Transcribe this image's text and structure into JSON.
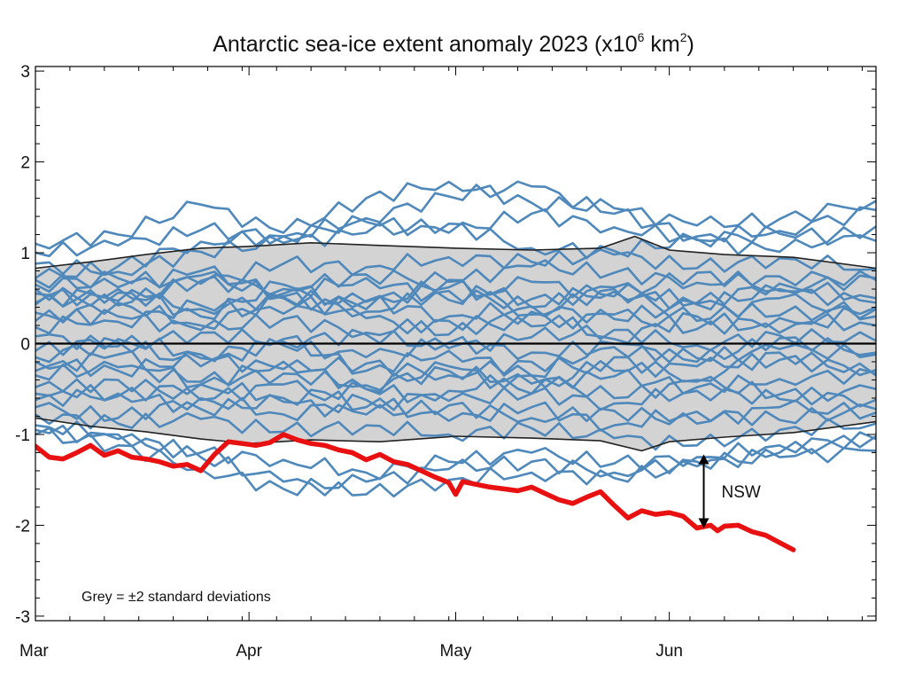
{
  "chart_data": {
    "type": "line",
    "title": {
      "main": "Antarctic sea-ice extent anomaly 2023 (x10",
      "exp1": "6",
      "mid": " km",
      "exp2": "2",
      "end": ")"
    },
    "xlabel": "",
    "ylabel": "",
    "x_ticks": [
      "Mar",
      "Apr",
      "May",
      "Jun"
    ],
    "x_tick_days": [
      0,
      31,
      61,
      92
    ],
    "xlim": [
      0,
      122
    ],
    "ylim": [
      -3.05,
      3.05
    ],
    "y_ticks": [
      3,
      2,
      1,
      0,
      -1,
      -2,
      -3
    ],
    "y_tick_labels": [
      "3",
      "2",
      "1",
      "0",
      "-1",
      "-2",
      "-3"
    ],
    "grid": false,
    "note": "Grey = ±2 standard deviations",
    "annotation": {
      "text": "NSW",
      "day": 97,
      "y_top": -1.22,
      "y_bottom": -2.03
    },
    "band": {
      "name": "±2 standard deviations",
      "color": "#d3d3d3",
      "upper": {
        "x": [
          0,
          8,
          16,
          24,
          31,
          40,
          50,
          61,
          72,
          82,
          87,
          92,
          100,
          110,
          122
        ],
        "y": [
          0.83,
          0.9,
          0.98,
          1.05,
          1.07,
          1.11,
          1.08,
          1.05,
          1.03,
          1.05,
          1.18,
          1.03,
          0.98,
          0.95,
          0.83
        ]
      },
      "lower": {
        "x": [
          0,
          8,
          16,
          24,
          31,
          40,
          50,
          61,
          72,
          82,
          88,
          92,
          100,
          110,
          122
        ],
        "y": [
          -0.82,
          -0.91,
          -0.97,
          -1.05,
          -1.1,
          -1.06,
          -1.08,
          -1.02,
          -1.04,
          -1.07,
          -1.18,
          -1.08,
          -1.03,
          -0.98,
          -0.86
        ]
      }
    },
    "ensemble_color": "#4f88bb",
    "ensemble": [
      {
        "x": [
          0,
          12,
          24,
          36,
          48,
          60,
          72,
          84,
          96,
          108,
          122
        ],
        "y": [
          1.1,
          1.2,
          1.53,
          1.22,
          1.6,
          1.78,
          1.55,
          1.49,
          1.3,
          1.37,
          1.57
        ]
      },
      {
        "x": [
          0,
          12,
          24,
          36,
          48,
          60,
          72,
          84,
          96,
          108,
          122
        ],
        "y": [
          1.0,
          1.08,
          1.25,
          1.18,
          1.38,
          1.62,
          1.73,
          1.43,
          1.18,
          1.24,
          1.47
        ]
      },
      {
        "x": [
          0,
          12,
          24,
          36,
          48,
          60,
          72,
          84,
          96,
          108,
          122
        ],
        "y": [
          0.72,
          0.85,
          1.12,
          1.18,
          1.34,
          1.22,
          1.43,
          1.28,
          1.15,
          1.21,
          1.13
        ]
      },
      {
        "x": [
          0,
          12,
          24,
          36,
          48,
          60,
          72,
          84,
          96,
          108,
          122
        ],
        "y": [
          0.88,
          0.79,
          1.01,
          1.11,
          1.22,
          1.32,
          1.05,
          1.02,
          1.14,
          1.01,
          1.29
        ]
      },
      {
        "x": [
          0,
          12,
          24,
          36,
          48,
          60,
          72,
          84,
          96,
          108,
          122
        ],
        "y": [
          0.65,
          0.72,
          0.66,
          0.88,
          0.84,
          0.95,
          0.9,
          0.98,
          0.83,
          0.94,
          0.82
        ]
      },
      {
        "x": [
          0,
          12,
          24,
          36,
          48,
          60,
          72,
          84,
          96,
          108,
          122
        ],
        "y": [
          0.55,
          0.47,
          0.69,
          0.6,
          0.76,
          0.68,
          0.85,
          0.78,
          0.67,
          0.74,
          0.7
        ]
      },
      {
        "x": [
          0,
          12,
          24,
          36,
          48,
          60,
          72,
          84,
          96,
          108,
          122
        ],
        "y": [
          0.43,
          0.56,
          0.38,
          0.51,
          0.46,
          0.62,
          0.49,
          0.57,
          0.43,
          0.58,
          0.45
        ]
      },
      {
        "x": [
          0,
          12,
          24,
          36,
          48,
          60,
          72,
          84,
          96,
          108,
          122
        ],
        "y": [
          0.34,
          0.24,
          0.42,
          0.33,
          0.47,
          0.3,
          0.41,
          0.27,
          0.44,
          0.31,
          0.38
        ]
      },
      {
        "x": [
          0,
          12,
          24,
          36,
          48,
          60,
          72,
          84,
          96,
          108,
          122
        ],
        "y": [
          0.18,
          0.3,
          0.15,
          0.27,
          0.12,
          0.25,
          0.19,
          0.32,
          0.16,
          0.28,
          0.2
        ]
      },
      {
        "x": [
          0,
          12,
          24,
          36,
          48,
          60,
          72,
          84,
          96,
          108,
          122
        ],
        "y": [
          0.08,
          -0.03,
          0.12,
          0.02,
          0.1,
          -0.05,
          0.07,
          0.15,
          -0.02,
          0.09,
          0.03
        ]
      },
      {
        "x": [
          0,
          12,
          24,
          36,
          48,
          60,
          72,
          84,
          96,
          108,
          122
        ],
        "y": [
          -0.08,
          0.05,
          -0.12,
          -0.02,
          -0.15,
          0.01,
          -0.1,
          -0.04,
          -0.16,
          -0.06,
          -0.12
        ]
      },
      {
        "x": [
          0,
          12,
          24,
          36,
          48,
          60,
          72,
          84,
          96,
          108,
          122
        ],
        "y": [
          -0.2,
          -0.3,
          -0.16,
          -0.28,
          -0.22,
          -0.35,
          -0.2,
          -0.3,
          -0.25,
          -0.18,
          -0.29
        ]
      },
      {
        "x": [
          0,
          12,
          24,
          36,
          48,
          60,
          72,
          84,
          96,
          108,
          122
        ],
        "y": [
          -0.35,
          -0.26,
          -0.42,
          -0.33,
          -0.46,
          -0.3,
          -0.44,
          -0.36,
          -0.48,
          -0.39,
          -0.33
        ]
      },
      {
        "x": [
          0,
          12,
          24,
          36,
          48,
          60,
          72,
          84,
          96,
          108,
          122
        ],
        "y": [
          -0.48,
          -0.58,
          -0.45,
          -0.6,
          -0.5,
          -0.63,
          -0.55,
          -0.66,
          -0.52,
          -0.61,
          -0.5
        ]
      },
      {
        "x": [
          0,
          12,
          24,
          36,
          48,
          60,
          72,
          84,
          96,
          108,
          122
        ],
        "y": [
          -0.62,
          -0.55,
          -0.72,
          -0.64,
          -0.78,
          -0.68,
          -0.82,
          -0.74,
          -0.88,
          -0.7,
          -0.76
        ]
      },
      {
        "x": [
          0,
          12,
          24,
          36,
          48,
          60,
          72,
          84,
          96,
          108,
          122
        ],
        "y": [
          -0.78,
          -0.88,
          -0.83,
          -0.97,
          -0.9,
          -1.0,
          -0.93,
          -1.04,
          -1.12,
          -0.95,
          -0.88
        ]
      },
      {
        "x": [
          0,
          12,
          24,
          36,
          48,
          60,
          72,
          84,
          96,
          108,
          122
        ],
        "y": [
          -0.95,
          -1.05,
          -1.2,
          -1.28,
          -1.42,
          -1.3,
          -1.2,
          -1.32,
          -1.25,
          -1.12,
          -1.05
        ]
      },
      {
        "x": [
          0,
          12,
          24,
          36,
          48,
          60,
          72,
          84,
          96,
          108,
          122
        ],
        "y": [
          -1.0,
          -1.12,
          -1.38,
          -1.6,
          -1.52,
          -1.38,
          -1.3,
          -1.42,
          -1.3,
          -1.25,
          -1.18
        ]
      },
      {
        "x": [
          0,
          12,
          24,
          36,
          48,
          60,
          72,
          84,
          96,
          108,
          122
        ],
        "y": [
          -0.9,
          -1.0,
          -1.25,
          -1.52,
          -1.66,
          -1.5,
          -1.42,
          -1.48,
          -1.35,
          -1.2,
          -1.02
        ]
      },
      {
        "x": [
          0,
          12,
          24,
          36,
          48,
          60,
          72,
          84,
          96,
          108,
          122
        ],
        "y": [
          0.6,
          0.42,
          0.75,
          0.52,
          0.35,
          0.58,
          0.4,
          0.62,
          0.45,
          0.66,
          0.5
        ]
      },
      {
        "x": [
          0,
          12,
          24,
          36,
          48,
          60,
          72,
          84,
          96,
          108,
          122
        ],
        "y": [
          -0.3,
          -0.12,
          -0.45,
          -0.2,
          -0.5,
          -0.25,
          -0.55,
          -0.15,
          -0.4,
          -0.1,
          -0.35
        ]
      },
      {
        "x": [
          0,
          12,
          24,
          36,
          48,
          60,
          72,
          84,
          96,
          108,
          122
        ],
        "y": [
          0.25,
          0.45,
          0.2,
          0.5,
          0.28,
          0.1,
          0.35,
          0.05,
          0.3,
          0.12,
          0.4
        ]
      },
      {
        "x": [
          0,
          12,
          24,
          36,
          48,
          60,
          72,
          84,
          96,
          108,
          122
        ],
        "y": [
          -0.55,
          -0.4,
          -0.62,
          -0.45,
          -0.7,
          -0.52,
          -0.35,
          -0.6,
          -0.42,
          -0.56,
          -0.62
        ]
      },
      {
        "x": [
          0,
          12,
          24,
          36,
          48,
          60,
          72,
          84,
          96,
          108,
          122
        ],
        "y": [
          0.7,
          0.62,
          0.8,
          0.55,
          0.72,
          0.48,
          0.68,
          0.52,
          0.78,
          0.6,
          0.72
        ]
      },
      {
        "x": [
          0,
          12,
          24,
          36,
          48,
          60,
          72,
          84,
          96,
          108,
          122
        ],
        "y": [
          -0.7,
          -0.82,
          -0.6,
          -0.78,
          -0.62,
          -0.85,
          -0.7,
          -0.9,
          -0.75,
          -0.84,
          -0.72
        ]
      },
      {
        "x": [
          0,
          12,
          24,
          36,
          48,
          60,
          72,
          84,
          96,
          108,
          122
        ],
        "y": [
          0.45,
          0.6,
          0.3,
          0.65,
          0.38,
          0.7,
          0.32,
          0.6,
          0.25,
          0.5,
          0.3
        ]
      },
      {
        "x": [
          0,
          12,
          24,
          36,
          48,
          60,
          72,
          84,
          96,
          108,
          122
        ],
        "y": [
          -0.15,
          0.02,
          -0.25,
          0.05,
          -0.3,
          -0.08,
          -0.35,
          0.0,
          -0.2,
          0.06,
          -0.1
        ]
      }
    ],
    "series": [
      {
        "color": "#e81010",
        "x": [
          0,
          2,
          4,
          6,
          8,
          10,
          12,
          14,
          16,
          18,
          20,
          22,
          24,
          26,
          28,
          30,
          32,
          34,
          36,
          38,
          40,
          42,
          44,
          46,
          48,
          50,
          52,
          54,
          56,
          58,
          60,
          61,
          62,
          64,
          66,
          68,
          70,
          72,
          74,
          76,
          78,
          80,
          82,
          84,
          86,
          88,
          90,
          92,
          94,
          96,
          98,
          99,
          100,
          102,
          104,
          106,
          108,
          110
        ],
        "y": [
          -1.13,
          -1.25,
          -1.27,
          -1.2,
          -1.12,
          -1.23,
          -1.18,
          -1.25,
          -1.27,
          -1.3,
          -1.35,
          -1.33,
          -1.4,
          -1.22,
          -1.08,
          -1.1,
          -1.12,
          -1.09,
          -1.0,
          -1.06,
          -1.1,
          -1.12,
          -1.17,
          -1.2,
          -1.28,
          -1.22,
          -1.3,
          -1.33,
          -1.4,
          -1.47,
          -1.53,
          -1.66,
          -1.52,
          -1.55,
          -1.58,
          -1.6,
          -1.62,
          -1.58,
          -1.65,
          -1.72,
          -1.76,
          -1.69,
          -1.63,
          -1.78,
          -1.92,
          -1.84,
          -1.88,
          -1.86,
          -1.9,
          -2.03,
          -2.0,
          -2.06,
          -2.01,
          -2.0,
          -2.07,
          -2.11,
          -2.19,
          -2.27
        ]
      }
    ]
  }
}
